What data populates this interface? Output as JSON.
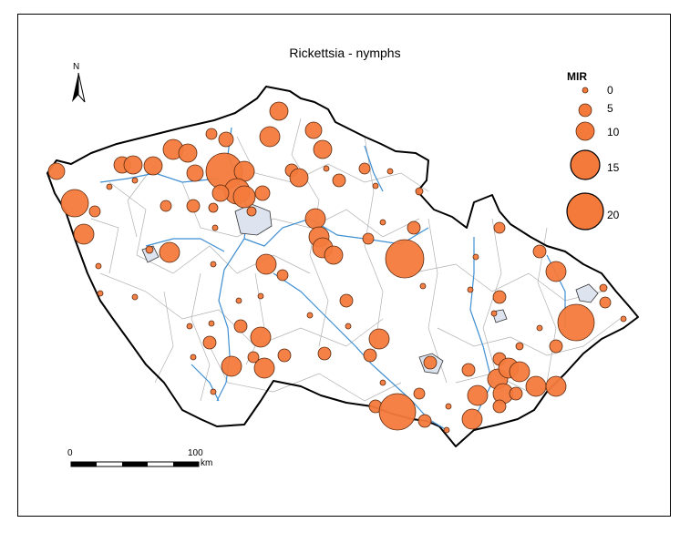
{
  "map": {
    "title": "Rickettsia - nymphs",
    "north_label": "N",
    "colors": {
      "circle_fill": "#f47a3c",
      "circle_stroke": "#5a2a10",
      "river": "#3f8fd2",
      "border": "#000000",
      "district": "#b0b0b0"
    },
    "legend": {
      "title": "MIR",
      "items": [
        {
          "label": "0"
        },
        {
          "label": "5"
        },
        {
          "label": "10"
        },
        {
          "label": "15"
        },
        {
          "label": "20"
        }
      ]
    },
    "scale_bar": {
      "start_label": "0",
      "end_label": "100",
      "unit_label": "km"
    }
  }
}
